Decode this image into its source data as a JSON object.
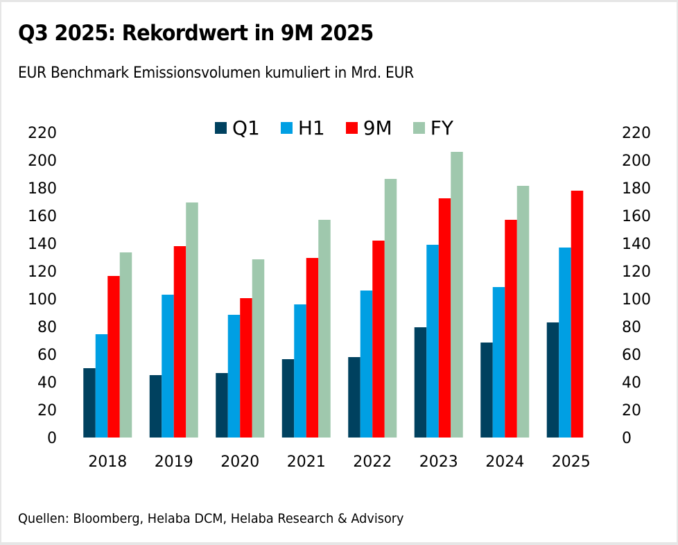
{
  "header": {
    "title": "Q3 2025: Rekordwert in 9M 2025",
    "subtitle": "EUR Benchmark Emissionsvolumen kumuliert in Mrd. EUR"
  },
  "footer": {
    "source": "Quellen: Bloomberg, Helaba DCM, Helaba Research & Advisory"
  },
  "chart_data": {
    "type": "bar",
    "title": "Q3 2025: Rekordwert in 9M 2025",
    "subtitle": "EUR Benchmark Emissionsvolumen kumuliert in Mrd. EUR",
    "xlabel": "",
    "ylabel": "Mrd. EUR",
    "categories": [
      "2018",
      "2019",
      "2020",
      "2021",
      "2022",
      "2023",
      "2024",
      "2025"
    ],
    "series": [
      {
        "name": "Q1",
        "color": "#00415F",
        "values": [
          50,
          45,
          46.5,
          56.5,
          58,
          79.5,
          68.5,
          83
        ]
      },
      {
        "name": "H1",
        "color": "#009FE3",
        "values": [
          74.5,
          103,
          88.5,
          96,
          106,
          139,
          108.5,
          137
        ]
      },
      {
        "name": "9M",
        "color": "#FF0000",
        "values": [
          116.5,
          138,
          100.5,
          129.5,
          142,
          172.5,
          157,
          178
        ]
      },
      {
        "name": "FY",
        "color": "#9FC8AD",
        "values": [
          133.5,
          169.5,
          128.5,
          157,
          186.5,
          206,
          181.5,
          null
        ]
      }
    ],
    "ylim": [
      0,
      220
    ],
    "yticks": [
      0,
      20,
      40,
      60,
      80,
      100,
      120,
      140,
      160,
      180,
      200,
      220
    ],
    "secondary_yaxis": true,
    "grid": false,
    "legend": {
      "position": "top-center",
      "entries": [
        "Q1",
        "H1",
        "9M",
        "FY"
      ]
    }
  }
}
